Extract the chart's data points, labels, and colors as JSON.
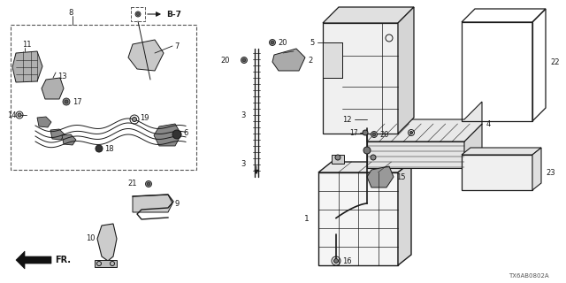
{
  "bg_color": "#ffffff",
  "line_color": "#1a1a1a",
  "diagram_code": "TX6AB0802A",
  "figsize": [
    6.4,
    3.2
  ],
  "dpi": 100
}
